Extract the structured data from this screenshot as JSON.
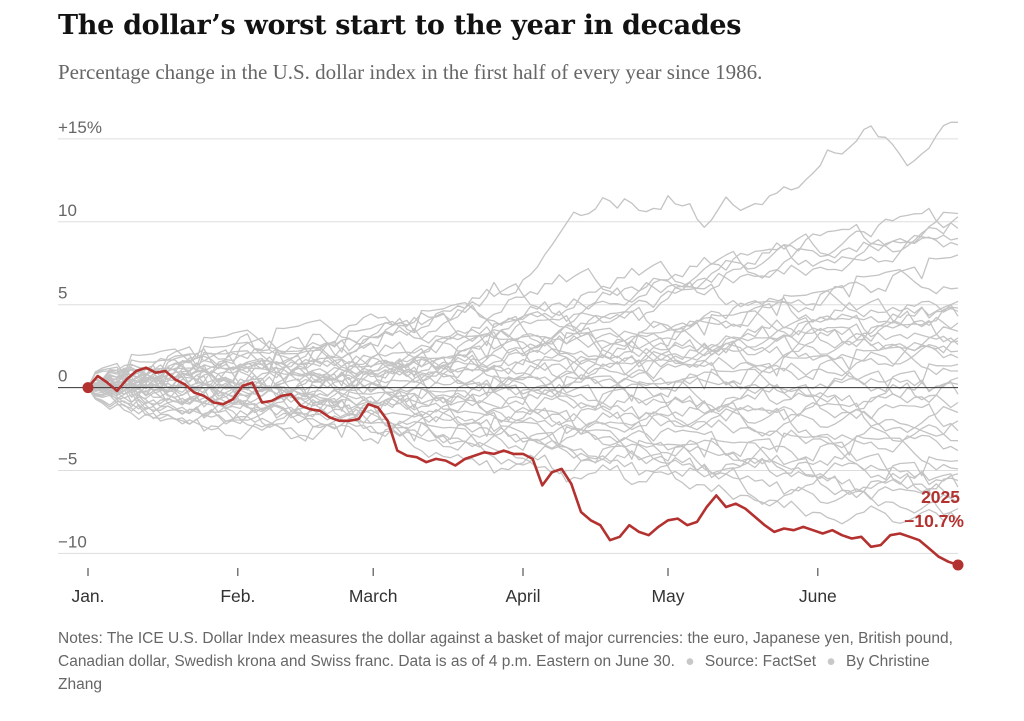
{
  "title": "The dollar’s worst start to the year in decades",
  "subtitle": "Percentage change in the U.S. dollar index in the first half of every year since 1986.",
  "notes": {
    "text": "Notes: The ICE U.S. Dollar Index measures the dollar against a basket of major currencies: the euro, Japanese yen, British pound, Canadian dollar, Swedish krona and Swiss franc. Data is as of 4 p.m. Eastern on June 30.",
    "source": "Source: FactSet",
    "byline": "By Christine Zhang"
  },
  "colors": {
    "highlight": "#b3312f",
    "background_series": "#c4c4c4",
    "grid": "#dddddd",
    "zero_line": "#333333",
    "axis_text": "#666666"
  },
  "chart_data": {
    "type": "line",
    "y_ticks": [
      {
        "value": 15,
        "label": "+15%"
      },
      {
        "value": 10,
        "label": "10"
      },
      {
        "value": 5,
        "label": "5"
      },
      {
        "value": 0,
        "label": "0"
      },
      {
        "value": -5,
        "label": "−5"
      },
      {
        "value": -10,
        "label": "−10"
      }
    ],
    "ylim": [
      -11.0,
      16.5
    ],
    "x_ticks": [
      {
        "day": 1,
        "label": "Jan."
      },
      {
        "day": 32,
        "label": "Feb."
      },
      {
        "day": 60,
        "label": "March"
      },
      {
        "day": 91,
        "label": "April"
      },
      {
        "day": 121,
        "label": "May"
      },
      {
        "day": 152,
        "label": "June"
      }
    ],
    "xlim": [
      1,
      181
    ],
    "highlight": {
      "name": "2025",
      "final_label": "−10.7%",
      "x": [
        1,
        3,
        5,
        7,
        9,
        11,
        13,
        15,
        17,
        19,
        21,
        23,
        25,
        27,
        29,
        31,
        33,
        35,
        37,
        39,
        41,
        43,
        45,
        47,
        49,
        51,
        53,
        55,
        57,
        59,
        61,
        63,
        65,
        67,
        69,
        71,
        73,
        75,
        77,
        79,
        81,
        83,
        85,
        87,
        89,
        91,
        93,
        95,
        97,
        99,
        101,
        103,
        105,
        107,
        109,
        111,
        113,
        115,
        117,
        119,
        121,
        123,
        125,
        127,
        129,
        131,
        133,
        135,
        137,
        139,
        141,
        143,
        145,
        147,
        149,
        151,
        153,
        155,
        157,
        159,
        161,
        163,
        165,
        167,
        169,
        171,
        173,
        175,
        177,
        179,
        181
      ],
      "values": [
        0.0,
        0.7,
        0.3,
        -0.2,
        0.5,
        1.0,
        1.2,
        0.9,
        1.0,
        0.5,
        0.2,
        -0.3,
        -0.5,
        -0.9,
        -1.0,
        -0.7,
        0.1,
        0.3,
        -0.9,
        -0.8,
        -0.5,
        -0.4,
        -1.1,
        -1.3,
        -1.4,
        -1.8,
        -2.0,
        -2.0,
        -1.9,
        -1.0,
        -1.2,
        -2.0,
        -3.8,
        -4.1,
        -4.2,
        -4.5,
        -4.3,
        -4.4,
        -4.7,
        -4.3,
        -4.1,
        -3.9,
        -4.0,
        -3.8,
        -4.0,
        -4.0,
        -4.3,
        -5.9,
        -5.1,
        -4.9,
        -5.8,
        -7.5,
        -8.0,
        -8.3,
        -9.2,
        -9.0,
        -8.3,
        -8.7,
        -8.9,
        -8.4,
        -8.0,
        -7.9,
        -8.3,
        -8.1,
        -7.2,
        -6.5,
        -7.2,
        -7.0,
        -7.3,
        -7.8,
        -8.3,
        -8.7,
        -8.5,
        -8.6,
        -8.4,
        -8.6,
        -8.8,
        -8.6,
        -8.9,
        -9.1,
        -9.0,
        -9.6,
        -9.5,
        -8.9,
        -8.8,
        -9.0,
        -9.2,
        -9.7,
        -10.2,
        -10.5,
        -10.7
      ]
    },
    "background_series_count": 39
  }
}
